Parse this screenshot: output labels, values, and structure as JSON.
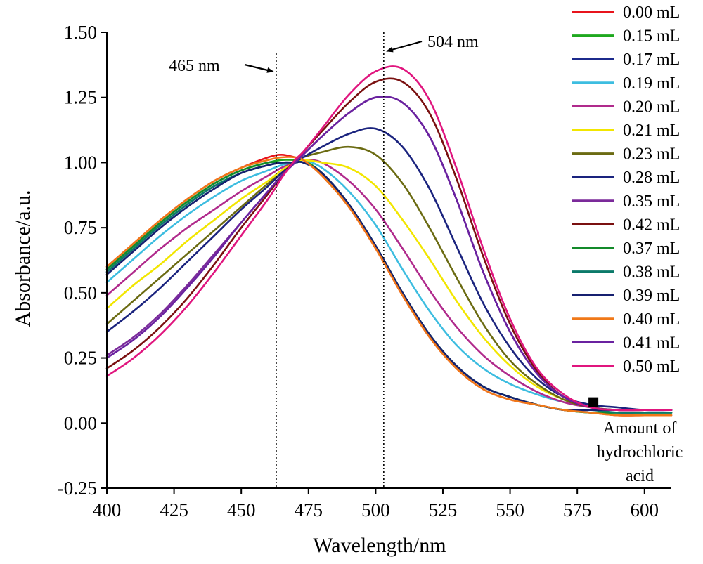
{
  "chart_data": {
    "type": "line",
    "title": "",
    "xlabel": "Wavelength/nm",
    "ylabel": "Absorbance/a.u.",
    "xlim": [
      400,
      610
    ],
    "ylim": [
      -0.25,
      1.5
    ],
    "xticks": [
      400,
      425,
      450,
      475,
      500,
      525,
      550,
      575,
      600
    ],
    "xtick_labels": [
      "400",
      "425",
      "450",
      "475",
      "500",
      "525",
      "550",
      "575",
      "600"
    ],
    "yticks": [
      -0.25,
      0,
      0.25,
      0.5,
      0.75,
      1.0,
      1.25,
      1.5
    ],
    "ytick_labels": [
      "-0.25",
      "0.00",
      "0.25",
      "0.50",
      "0.75",
      "1.00",
      "1.25",
      "1.50"
    ],
    "grid": false,
    "legend_position": "right",
    "x": [
      400,
      410,
      420,
      430,
      440,
      450,
      460,
      465,
      470,
      473,
      480,
      490,
      500,
      510,
      520,
      530,
      540,
      550,
      560,
      570,
      580,
      590,
      600,
      610
    ],
    "series": [
      {
        "name": "0.00 mL",
        "color": "#e8141c",
        "values": [
          0.6,
          0.69,
          0.78,
          0.86,
          0.93,
          0.98,
          1.02,
          1.03,
          1.02,
          1.01,
          0.95,
          0.83,
          0.67,
          0.49,
          0.33,
          0.21,
          0.13,
          0.09,
          0.07,
          0.05,
          0.04,
          0.03,
          0.03,
          0.03
        ]
      },
      {
        "name": "0.15 mL",
        "color": "#1ea81e",
        "values": [
          0.59,
          0.68,
          0.77,
          0.85,
          0.92,
          0.97,
          1.0,
          1.01,
          1.01,
          1.01,
          0.96,
          0.84,
          0.68,
          0.5,
          0.34,
          0.22,
          0.14,
          0.1,
          0.07,
          0.05,
          0.04,
          0.04,
          0.04,
          0.04
        ]
      },
      {
        "name": "0.17 mL",
        "color": "#1c2a8c",
        "values": [
          0.58,
          0.67,
          0.76,
          0.84,
          0.91,
          0.96,
          0.99,
          1.0,
          1.0,
          1.0,
          0.96,
          0.84,
          0.68,
          0.5,
          0.34,
          0.22,
          0.14,
          0.1,
          0.07,
          0.05,
          0.05,
          0.05,
          0.05,
          0.05
        ]
      },
      {
        "name": "0.19 mL",
        "color": "#3dbde0",
        "values": [
          0.54,
          0.63,
          0.72,
          0.8,
          0.87,
          0.93,
          0.97,
          0.99,
          1.0,
          1.01,
          0.98,
          0.89,
          0.76,
          0.59,
          0.43,
          0.3,
          0.21,
          0.15,
          0.11,
          0.08,
          0.06,
          0.05,
          0.05,
          0.05
        ]
      },
      {
        "name": "0.20 mL",
        "color": "#b02a8c",
        "values": [
          0.49,
          0.58,
          0.67,
          0.75,
          0.82,
          0.89,
          0.95,
          0.98,
          1.0,
          1.01,
          1.0,
          0.93,
          0.82,
          0.67,
          0.51,
          0.37,
          0.26,
          0.18,
          0.12,
          0.08,
          0.06,
          0.05,
          0.05,
          0.05
        ]
      },
      {
        "name": "0.21 mL",
        "color": "#f2e600",
        "values": [
          0.44,
          0.53,
          0.61,
          0.7,
          0.78,
          0.86,
          0.93,
          0.97,
          1.0,
          1.01,
          1.0,
          0.98,
          0.91,
          0.78,
          0.63,
          0.47,
          0.33,
          0.22,
          0.14,
          0.09,
          0.06,
          0.05,
          0.05,
          0.05
        ]
      },
      {
        "name": "0.23 mL",
        "color": "#6b6b12",
        "values": [
          0.38,
          0.47,
          0.56,
          0.65,
          0.74,
          0.83,
          0.92,
          0.96,
          1.0,
          1.02,
          1.04,
          1.06,
          1.03,
          0.92,
          0.75,
          0.56,
          0.38,
          0.24,
          0.15,
          0.09,
          0.06,
          0.05,
          0.05,
          0.05
        ]
      },
      {
        "name": "0.28 mL",
        "color": "#1a237e",
        "values": [
          0.35,
          0.43,
          0.52,
          0.62,
          0.72,
          0.82,
          0.91,
          0.96,
          1.0,
          1.02,
          1.06,
          1.11,
          1.13,
          1.06,
          0.9,
          0.68,
          0.46,
          0.29,
          0.17,
          0.1,
          0.07,
          0.06,
          0.05,
          0.05
        ]
      },
      {
        "name": "0.35 mL",
        "color": "#7b2a9a",
        "values": [
          0.26,
          0.33,
          0.42,
          0.53,
          0.65,
          0.77,
          0.89,
          0.95,
          1.0,
          1.03,
          1.1,
          1.19,
          1.25,
          1.23,
          1.1,
          0.86,
          0.58,
          0.35,
          0.19,
          0.1,
          0.06,
          0.05,
          0.05,
          0.05
        ]
      },
      {
        "name": "0.42 mL",
        "color": "#7a1010",
        "values": [
          0.21,
          0.28,
          0.37,
          0.48,
          0.61,
          0.75,
          0.88,
          0.95,
          1.01,
          1.04,
          1.12,
          1.23,
          1.31,
          1.31,
          1.19,
          0.94,
          0.64,
          0.38,
          0.2,
          0.1,
          0.06,
          0.05,
          0.05,
          0.05
        ]
      },
      {
        "name": "0.37 mL",
        "color": "#138a2a",
        "values": [
          0.59,
          0.68,
          0.77,
          0.85,
          0.92,
          0.97,
          1.0,
          1.0,
          1.0,
          1.0,
          0.96,
          0.84,
          0.68,
          0.5,
          0.34,
          0.22,
          0.14,
          0.1,
          0.07,
          0.05,
          0.04,
          0.04,
          0.04,
          0.04
        ]
      },
      {
        "name": "0.38 mL",
        "color": "#0b7a6a",
        "values": [
          0.58,
          0.67,
          0.76,
          0.84,
          0.91,
          0.96,
          0.99,
          1.0,
          1.0,
          1.0,
          0.96,
          0.84,
          0.68,
          0.5,
          0.34,
          0.22,
          0.14,
          0.1,
          0.07,
          0.05,
          0.05,
          0.04,
          0.04,
          0.04
        ]
      },
      {
        "name": "0.39 mL",
        "color": "#162070",
        "values": [
          0.57,
          0.66,
          0.75,
          0.83,
          0.9,
          0.96,
          0.99,
          1.0,
          1.0,
          1.0,
          0.96,
          0.84,
          0.68,
          0.5,
          0.34,
          0.22,
          0.14,
          0.1,
          0.07,
          0.05,
          0.05,
          0.05,
          0.05,
          0.05
        ]
      },
      {
        "name": "0.40 mL",
        "color": "#f07818",
        "values": [
          0.6,
          0.69,
          0.78,
          0.86,
          0.93,
          0.98,
          1.01,
          1.02,
          1.02,
          1.01,
          0.95,
          0.83,
          0.67,
          0.49,
          0.33,
          0.21,
          0.13,
          0.09,
          0.07,
          0.05,
          0.04,
          0.03,
          0.03,
          0.03
        ]
      },
      {
        "name": "0.41 mL",
        "color": "#6a22a0",
        "values": [
          0.25,
          0.32,
          0.41,
          0.52,
          0.64,
          0.77,
          0.89,
          0.95,
          1.0,
          1.03,
          1.1,
          1.19,
          1.25,
          1.23,
          1.1,
          0.86,
          0.58,
          0.35,
          0.19,
          0.1,
          0.06,
          0.05,
          0.05,
          0.05
        ]
      },
      {
        "name": "0.50 mL",
        "color": "#e0157e",
        "values": [
          0.18,
          0.25,
          0.34,
          0.45,
          0.58,
          0.72,
          0.86,
          0.94,
          1.01,
          1.04,
          1.13,
          1.26,
          1.35,
          1.36,
          1.24,
          0.98,
          0.67,
          0.4,
          0.21,
          0.11,
          0.06,
          0.05,
          0.05,
          0.05
        ]
      }
    ],
    "reference_lines": [
      {
        "x": 463,
        "label": "465 nm",
        "side": "left"
      },
      {
        "x": 503,
        "label": "504 nm",
        "side": "right"
      }
    ],
    "marker": {
      "x": 581,
      "y": 0.08,
      "label_lines": [
        "Amount of",
        "hydrochloric",
        "acid"
      ]
    }
  }
}
